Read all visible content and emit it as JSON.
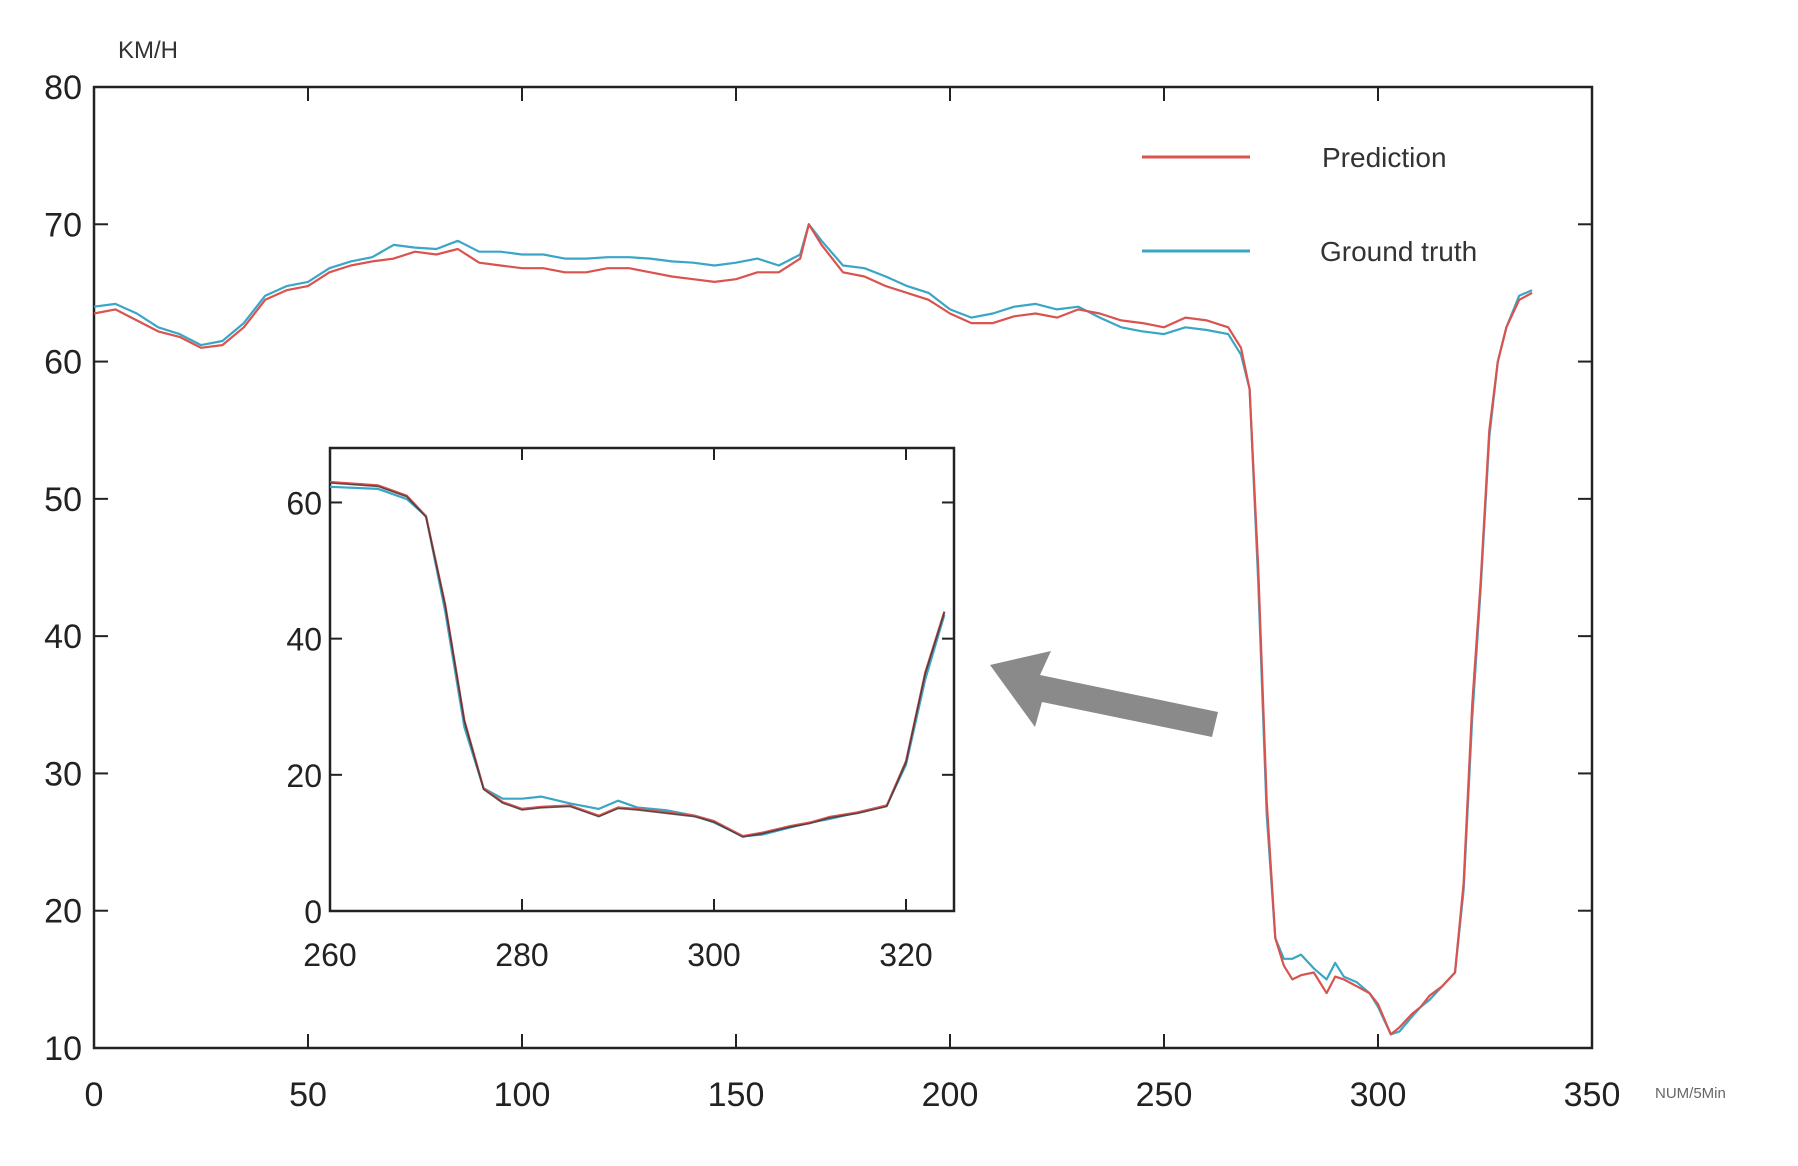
{
  "chart_data": {
    "type": "line",
    "ylabel": "KM/H",
    "xlabel": "NUM/5Min",
    "xlim": [
      0,
      350
    ],
    "ylim": [
      10,
      80
    ],
    "x_ticks": [
      0,
      50,
      100,
      150,
      200,
      250,
      300,
      350
    ],
    "y_ticks": [
      10,
      20,
      30,
      40,
      50,
      60,
      70,
      80
    ],
    "legend_position": "top-right",
    "legend": [
      "Prediction",
      "Ground truth"
    ],
    "series": [
      {
        "name": "Prediction",
        "color": "#d9534f",
        "points": [
          [
            0,
            63.5
          ],
          [
            5,
            63.8
          ],
          [
            10,
            63.0
          ],
          [
            15,
            62.2
          ],
          [
            20,
            61.8
          ],
          [
            25,
            61.0
          ],
          [
            30,
            61.2
          ],
          [
            35,
            62.5
          ],
          [
            40,
            64.5
          ],
          [
            45,
            65.2
          ],
          [
            50,
            65.5
          ],
          [
            55,
            66.5
          ],
          [
            60,
            67.0
          ],
          [
            65,
            67.3
          ],
          [
            70,
            67.5
          ],
          [
            75,
            68.0
          ],
          [
            80,
            67.8
          ],
          [
            85,
            68.2
          ],
          [
            90,
            67.2
          ],
          [
            95,
            67.0
          ],
          [
            100,
            66.8
          ],
          [
            105,
            66.8
          ],
          [
            110,
            66.5
          ],
          [
            115,
            66.5
          ],
          [
            120,
            66.8
          ],
          [
            125,
            66.8
          ],
          [
            130,
            66.5
          ],
          [
            135,
            66.2
          ],
          [
            140,
            66.0
          ],
          [
            145,
            65.8
          ],
          [
            150,
            66.0
          ],
          [
            155,
            66.5
          ],
          [
            160,
            66.5
          ],
          [
            165,
            67.5
          ],
          [
            167,
            70.0
          ],
          [
            170,
            68.5
          ],
          [
            175,
            66.5
          ],
          [
            180,
            66.2
          ],
          [
            185,
            65.5
          ],
          [
            190,
            65.0
          ],
          [
            195,
            64.5
          ],
          [
            200,
            63.5
          ],
          [
            205,
            62.8
          ],
          [
            210,
            62.8
          ],
          [
            215,
            63.3
          ],
          [
            220,
            63.5
          ],
          [
            225,
            63.2
          ],
          [
            230,
            63.8
          ],
          [
            235,
            63.5
          ],
          [
            240,
            63.0
          ],
          [
            245,
            62.8
          ],
          [
            250,
            62.5
          ],
          [
            255,
            63.2
          ],
          [
            260,
            63.0
          ],
          [
            265,
            62.5
          ],
          [
            268,
            61.0
          ],
          [
            270,
            58.0
          ],
          [
            272,
            45.0
          ],
          [
            274,
            28.0
          ],
          [
            276,
            18.0
          ],
          [
            278,
            16.0
          ],
          [
            280,
            15.0
          ],
          [
            282,
            15.3
          ],
          [
            285,
            15.5
          ],
          [
            288,
            14.0
          ],
          [
            290,
            15.2
          ],
          [
            292,
            15.0
          ],
          [
            295,
            14.5
          ],
          [
            298,
            14.0
          ],
          [
            300,
            13.2
          ],
          [
            303,
            11.0
          ],
          [
            305,
            11.5
          ],
          [
            308,
            12.5
          ],
          [
            310,
            13.0
          ],
          [
            312,
            13.8
          ],
          [
            315,
            14.5
          ],
          [
            318,
            15.5
          ],
          [
            320,
            22.0
          ],
          [
            322,
            35.0
          ],
          [
            324,
            44.0
          ],
          [
            326,
            55.0
          ],
          [
            328,
            60.0
          ],
          [
            330,
            62.5
          ],
          [
            333,
            64.5
          ],
          [
            336,
            65.0
          ]
        ]
      },
      {
        "name": "Ground truth",
        "color": "#3aa6c6",
        "points": [
          [
            0,
            64.0
          ],
          [
            5,
            64.2
          ],
          [
            10,
            63.5
          ],
          [
            15,
            62.5
          ],
          [
            20,
            62.0
          ],
          [
            25,
            61.2
          ],
          [
            30,
            61.5
          ],
          [
            35,
            62.8
          ],
          [
            40,
            64.8
          ],
          [
            45,
            65.5
          ],
          [
            50,
            65.8
          ],
          [
            55,
            66.8
          ],
          [
            60,
            67.3
          ],
          [
            65,
            67.6
          ],
          [
            70,
            68.5
          ],
          [
            75,
            68.3
          ],
          [
            80,
            68.2
          ],
          [
            85,
            68.8
          ],
          [
            90,
            68.0
          ],
          [
            95,
            68.0
          ],
          [
            100,
            67.8
          ],
          [
            105,
            67.8
          ],
          [
            110,
            67.5
          ],
          [
            115,
            67.5
          ],
          [
            120,
            67.6
          ],
          [
            125,
            67.6
          ],
          [
            130,
            67.5
          ],
          [
            135,
            67.3
          ],
          [
            140,
            67.2
          ],
          [
            145,
            67.0
          ],
          [
            150,
            67.2
          ],
          [
            155,
            67.5
          ],
          [
            160,
            67.0
          ],
          [
            165,
            67.8
          ],
          [
            167,
            70.0
          ],
          [
            170,
            68.8
          ],
          [
            175,
            67.0
          ],
          [
            180,
            66.8
          ],
          [
            185,
            66.2
          ],
          [
            190,
            65.5
          ],
          [
            195,
            65.0
          ],
          [
            200,
            63.8
          ],
          [
            205,
            63.2
          ],
          [
            210,
            63.5
          ],
          [
            215,
            64.0
          ],
          [
            220,
            64.2
          ],
          [
            225,
            63.8
          ],
          [
            230,
            64.0
          ],
          [
            235,
            63.2
          ],
          [
            240,
            62.5
          ],
          [
            245,
            62.2
          ],
          [
            250,
            62.0
          ],
          [
            255,
            62.5
          ],
          [
            260,
            62.3
          ],
          [
            265,
            62.0
          ],
          [
            268,
            60.5
          ],
          [
            270,
            58.0
          ],
          [
            272,
            44.0
          ],
          [
            274,
            27.0
          ],
          [
            276,
            18.0
          ],
          [
            278,
            16.5
          ],
          [
            280,
            16.5
          ],
          [
            282,
            16.8
          ],
          [
            285,
            15.8
          ],
          [
            288,
            15.0
          ],
          [
            290,
            16.2
          ],
          [
            292,
            15.2
          ],
          [
            295,
            14.8
          ],
          [
            298,
            14.0
          ],
          [
            300,
            13.0
          ],
          [
            303,
            11.0
          ],
          [
            305,
            11.2
          ],
          [
            308,
            12.3
          ],
          [
            310,
            13.0
          ],
          [
            312,
            13.5
          ],
          [
            315,
            14.5
          ],
          [
            318,
            15.5
          ],
          [
            320,
            21.5
          ],
          [
            322,
            34.0
          ],
          [
            324,
            43.5
          ],
          [
            326,
            54.5
          ],
          [
            328,
            60.0
          ],
          [
            330,
            62.5
          ],
          [
            333,
            64.8
          ],
          [
            336,
            65.2
          ]
        ]
      }
    ],
    "inset": {
      "xlim": [
        260,
        325
      ],
      "ylim": [
        0,
        68
      ],
      "x_ticks": [
        260,
        280,
        300,
        320
      ],
      "y_ticks": [
        0,
        20,
        40,
        60
      ]
    }
  }
}
